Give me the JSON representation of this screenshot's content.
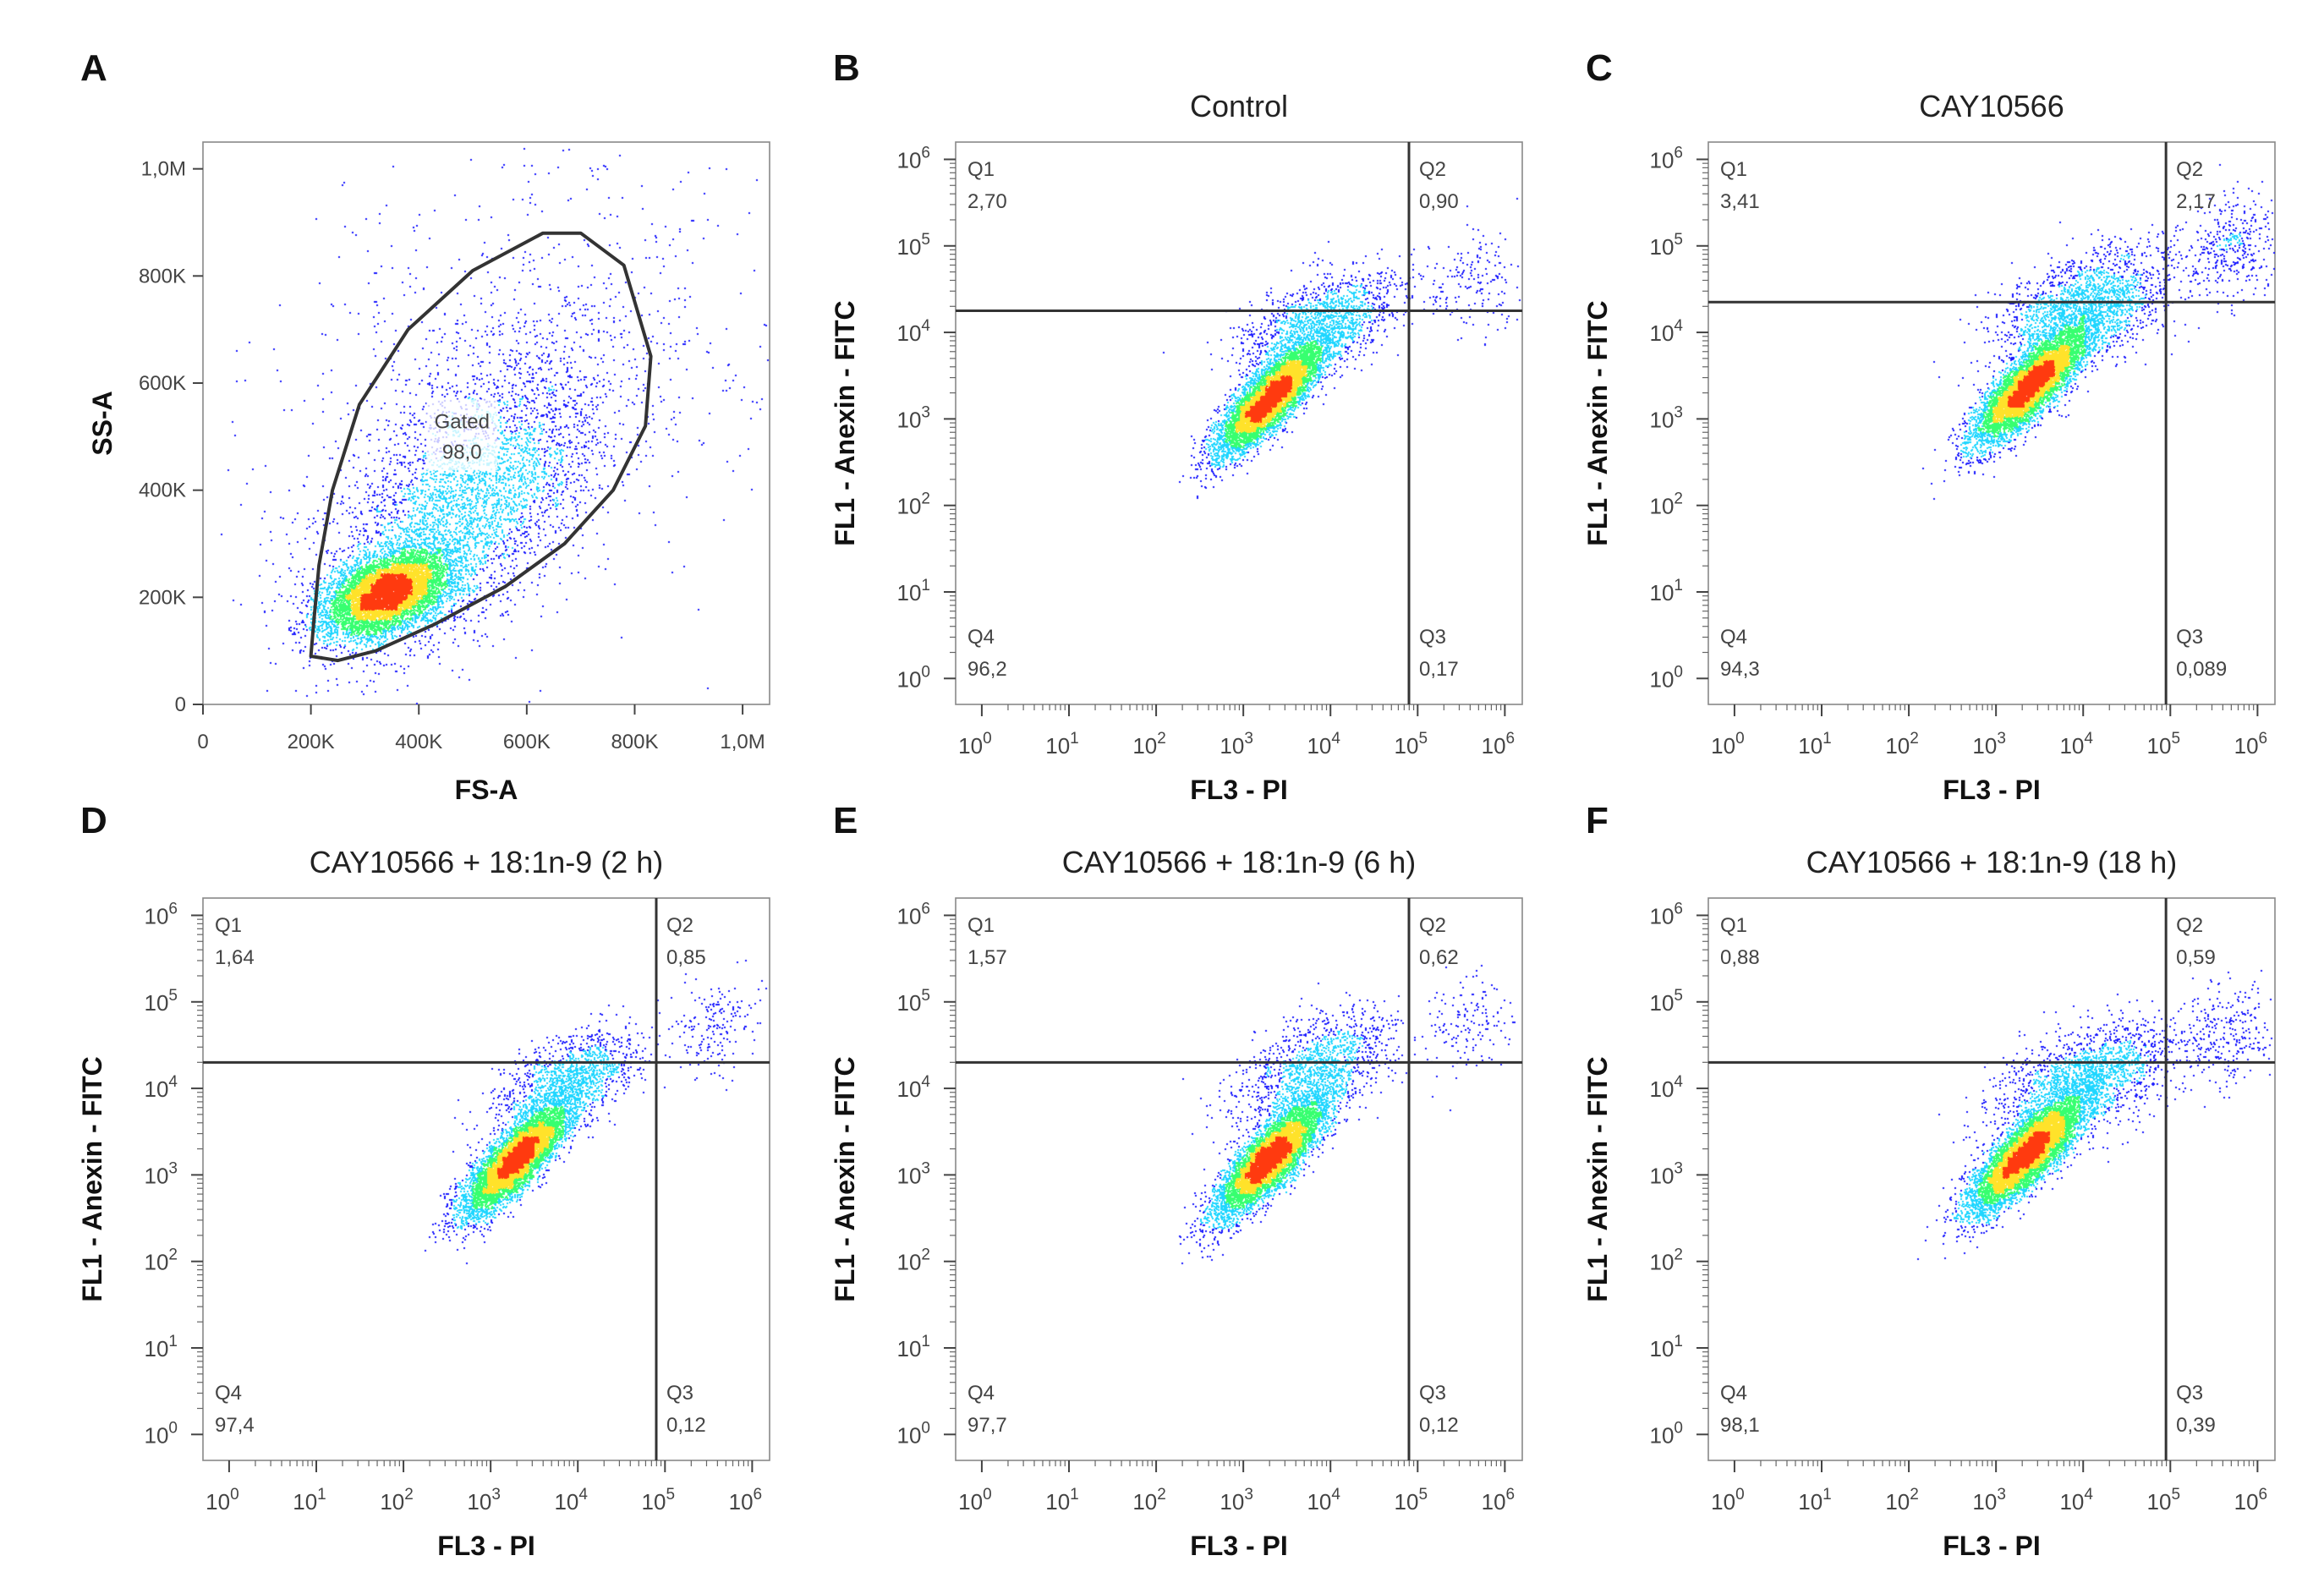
{
  "colors": {
    "density_low": "#1a1aff",
    "density_mid": "#1fd6ff",
    "density_midhigh": "#37ff70",
    "density_high": "#ffe22a",
    "density_peak": "#ff3a0f",
    "gate_line": "#333333",
    "frame": "#888888"
  },
  "chart_data": [
    {
      "panel": "A",
      "type": "scatter",
      "title": "",
      "xlabel": "FS-A",
      "ylabel": "SS-A",
      "x_scale": "linear",
      "y_scale": "linear",
      "xlim": [
        0,
        1050000
      ],
      "ylim": [
        0,
        1050000
      ],
      "x_ticks": [
        {
          "value": 0,
          "label": "0"
        },
        {
          "value": 200000,
          "label": "200K"
        },
        {
          "value": 400000,
          "label": "400K"
        },
        {
          "value": 600000,
          "label": "600K"
        },
        {
          "value": 800000,
          "label": "800K"
        },
        {
          "value": 1000000,
          "label": "1,0M"
        }
      ],
      "y_ticks": [
        {
          "value": 0,
          "label": "0"
        },
        {
          "value": 200000,
          "label": "200K"
        },
        {
          "value": 400000,
          "label": "400K"
        },
        {
          "value": 600000,
          "label": "600K"
        },
        {
          "value": 800000,
          "label": "800K"
        },
        {
          "value": 1000000,
          "label": "1,0M"
        }
      ],
      "gate": {
        "name": "Gated",
        "value": "98,0",
        "polygon": [
          [
            200000,
            90000
          ],
          [
            205000,
            150000
          ],
          [
            215000,
            260000
          ],
          [
            240000,
            400000
          ],
          [
            290000,
            560000
          ],
          [
            380000,
            700000
          ],
          [
            500000,
            810000
          ],
          [
            630000,
            880000
          ],
          [
            700000,
            880000
          ],
          [
            780000,
            820000
          ],
          [
            830000,
            650000
          ],
          [
            820000,
            520000
          ],
          [
            760000,
            400000
          ],
          [
            670000,
            300000
          ],
          [
            560000,
            220000
          ],
          [
            430000,
            150000
          ],
          [
            320000,
            100000
          ],
          [
            250000,
            82000
          ],
          [
            200000,
            90000
          ]
        ]
      },
      "populations": [
        {
          "cx": 340000,
          "cy": 210000,
          "sx": 58000,
          "sy": 40000,
          "rho": 0.45,
          "n": 7000
        },
        {
          "cx": 480000,
          "cy": 380000,
          "sx": 130000,
          "sy": 140000,
          "rho": 0.6,
          "n": 4000
        },
        {
          "cx": 600000,
          "cy": 620000,
          "sx": 230000,
          "sy": 230000,
          "rho": 0.3,
          "n": 900
        }
      ]
    },
    {
      "panel": "B",
      "type": "scatter",
      "title": "Control",
      "xlabel": "FL3 - PI",
      "ylabel": "FL1 - Anexin - FITC",
      "x_scale": "log",
      "y_scale": "log",
      "xlim_log10": [
        -0.3,
        6.2
      ],
      "ylim_log10": [
        -0.3,
        6.2
      ],
      "quadrant_gate": {
        "x_log10": 4.9,
        "y_log10": 4.25
      },
      "quadrants": [
        {
          "name": "Q1",
          "value": "2,70"
        },
        {
          "name": "Q2",
          "value": "0,90"
        },
        {
          "name": "Q3",
          "value": "0,17"
        },
        {
          "name": "Q4",
          "value": "96,2"
        }
      ],
      "populations": [
        {
          "lx": 3.3,
          "ly": 3.25,
          "sx": 0.3,
          "sy": 0.32,
          "rho": 0.82,
          "n": 7000
        },
        {
          "lx": 3.9,
          "ly": 4.1,
          "sx": 0.45,
          "sy": 0.3,
          "rho": 0.5,
          "n": 1500
        },
        {
          "lx": 5.6,
          "ly": 4.6,
          "sx": 0.3,
          "sy": 0.3,
          "rho": 0.2,
          "n": 180
        }
      ]
    },
    {
      "panel": "C",
      "type": "scatter",
      "title": "CAY10566",
      "xlabel": "FL3 - PI",
      "ylabel": "FL1 - Anexin - FITC",
      "x_scale": "log",
      "y_scale": "log",
      "xlim_log10": [
        -0.3,
        6.2
      ],
      "ylim_log10": [
        -0.3,
        6.2
      ],
      "quadrant_gate": {
        "x_log10": 4.95,
        "y_log10": 4.35
      },
      "quadrants": [
        {
          "name": "Q1",
          "value": "3,41"
        },
        {
          "name": "Q2",
          "value": "2,17"
        },
        {
          "name": "Q3",
          "value": "0,089"
        },
        {
          "name": "Q4",
          "value": "94,3"
        }
      ],
      "populations": [
        {
          "lx": 3.4,
          "ly": 3.4,
          "sx": 0.32,
          "sy": 0.33,
          "rho": 0.82,
          "n": 7000
        },
        {
          "lx": 4.0,
          "ly": 4.3,
          "sx": 0.5,
          "sy": 0.35,
          "rho": 0.5,
          "n": 2000
        },
        {
          "lx": 5.7,
          "ly": 5.0,
          "sx": 0.28,
          "sy": 0.3,
          "rho": 0.2,
          "n": 400
        }
      ]
    },
    {
      "panel": "D",
      "type": "scatter",
      "title": "CAY10566 + 18:1n-9 (2 h)",
      "xlabel": "FL3 - PI",
      "ylabel": "FL1 - Anexin - FITC",
      "x_scale": "log",
      "y_scale": "log",
      "xlim_log10": [
        -0.3,
        6.2
      ],
      "ylim_log10": [
        -0.3,
        6.2
      ],
      "quadrant_gate": {
        "x_log10": 4.9,
        "y_log10": 4.3
      },
      "quadrants": [
        {
          "name": "Q1",
          "value": "1,64"
        },
        {
          "name": "Q2",
          "value": "0,85"
        },
        {
          "name": "Q3",
          "value": "0,12"
        },
        {
          "name": "Q4",
          "value": "97,4"
        }
      ],
      "populations": [
        {
          "lx": 3.3,
          "ly": 3.2,
          "sx": 0.3,
          "sy": 0.32,
          "rho": 0.82,
          "n": 7000
        },
        {
          "lx": 3.9,
          "ly": 4.1,
          "sx": 0.4,
          "sy": 0.3,
          "rho": 0.5,
          "n": 1300
        },
        {
          "lx": 5.6,
          "ly": 4.75,
          "sx": 0.25,
          "sy": 0.3,
          "rho": 0.2,
          "n": 180
        }
      ]
    },
    {
      "panel": "E",
      "type": "scatter",
      "title": "CAY10566 + 18:1n-9 (6 h)",
      "xlabel": "FL3 - PI",
      "ylabel": "FL1 - Anexin - FITC",
      "x_scale": "log",
      "y_scale": "log",
      "xlim_log10": [
        -0.3,
        6.2
      ],
      "ylim_log10": [
        -0.3,
        6.2
      ],
      "quadrant_gate": {
        "x_log10": 4.9,
        "y_log10": 4.3
      },
      "quadrants": [
        {
          "name": "Q1",
          "value": "1,57"
        },
        {
          "name": "Q2",
          "value": "0,62"
        },
        {
          "name": "Q3",
          "value": "0,12"
        },
        {
          "name": "Q4",
          "value": "97,7"
        }
      ],
      "populations": [
        {
          "lx": 3.3,
          "ly": 3.2,
          "sx": 0.3,
          "sy": 0.32,
          "rho": 0.82,
          "n": 7000
        },
        {
          "lx": 3.8,
          "ly": 4.2,
          "sx": 0.45,
          "sy": 0.35,
          "rho": 0.5,
          "n": 1400
        },
        {
          "lx": 5.6,
          "ly": 4.75,
          "sx": 0.25,
          "sy": 0.3,
          "rho": 0.2,
          "n": 150
        }
      ]
    },
    {
      "panel": "F",
      "type": "scatter",
      "title": "CAY10566 + 18:1n-9 (18 h)",
      "xlabel": "FL3 - PI",
      "ylabel": "FL1 - Anexin - FITC",
      "x_scale": "log",
      "y_scale": "log",
      "xlim_log10": [
        -0.3,
        6.2
      ],
      "ylim_log10": [
        -0.3,
        6.2
      ],
      "quadrant_gate": {
        "x_log10": 4.95,
        "y_log10": 4.3
      },
      "quadrants": [
        {
          "name": "Q1",
          "value": "0,88"
        },
        {
          "name": "Q2",
          "value": "0,59"
        },
        {
          "name": "Q3",
          "value": "0,39"
        },
        {
          "name": "Q4",
          "value": "98,1"
        }
      ],
      "populations": [
        {
          "lx": 3.35,
          "ly": 3.25,
          "sx": 0.32,
          "sy": 0.33,
          "rho": 0.82,
          "n": 7500
        },
        {
          "lx": 4.0,
          "ly": 4.1,
          "sx": 0.5,
          "sy": 0.32,
          "rho": 0.5,
          "n": 1800
        },
        {
          "lx": 5.6,
          "ly": 4.6,
          "sx": 0.3,
          "sy": 0.3,
          "rho": 0.2,
          "n": 300
        }
      ]
    }
  ]
}
